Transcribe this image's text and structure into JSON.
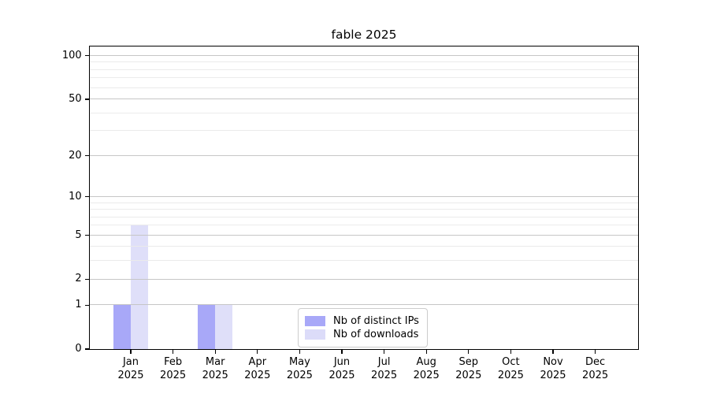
{
  "chart_data": {
    "type": "bar",
    "title": "fable 2025",
    "categories": [
      "Jan 2025",
      "Feb 2025",
      "Mar 2025",
      "Apr 2025",
      "May 2025",
      "Jun 2025",
      "Jul 2025",
      "Aug 2025",
      "Sep 2025",
      "Oct 2025",
      "Nov 2025",
      "Dec 2025"
    ],
    "series": [
      {
        "name": "Nb of distinct IPs",
        "color": "#a8a8f8",
        "values": [
          1,
          0,
          1,
          0,
          0,
          0,
          0,
          0,
          0,
          0,
          0,
          0
        ]
      },
      {
        "name": "Nb of downloads",
        "color": "#dcdcf9",
        "values": [
          6,
          0,
          1,
          0,
          0,
          0,
          0,
          0,
          0,
          0,
          0,
          0
        ]
      }
    ],
    "yscale": "log1p",
    "ylim": [
      0,
      116
    ],
    "yticks": [
      0,
      1,
      2,
      5,
      10,
      20,
      50,
      100
    ],
    "yticks_minor": [
      3,
      4,
      6,
      7,
      8,
      9,
      30,
      40,
      60,
      70,
      80,
      90
    ],
    "grid": true,
    "legend_position": "inside-bottom-center",
    "xlabel": "",
    "ylabel": ""
  },
  "colors": {
    "background": "#ffffff",
    "axis": "#000000",
    "major_grid": "#c6c6c6",
    "minor_grid": "#ebebeb",
    "tick_label": "#000000"
  }
}
